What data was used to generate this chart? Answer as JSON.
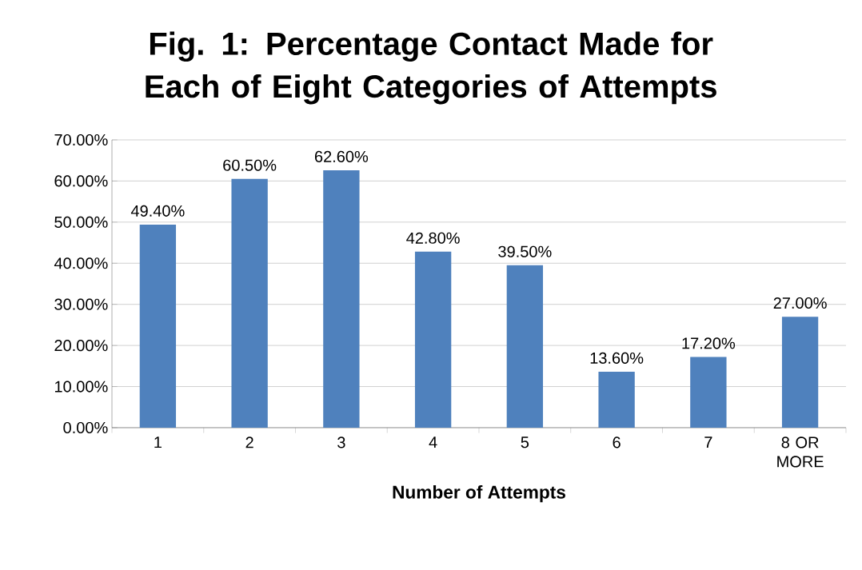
{
  "chart_data": {
    "type": "bar",
    "title": "Fig. 1: Percentage Contact Made for Each of Eight Categories of Attempts",
    "xlabel": "Number of Attempts",
    "categories": [
      "1",
      "2",
      "3",
      "4",
      "5",
      "6",
      "7",
      "8 OR MORE"
    ],
    "values": [
      49.4,
      60.5,
      62.6,
      42.8,
      39.5,
      13.6,
      17.2,
      27.0
    ],
    "value_labels": [
      "49.40%",
      "60.50%",
      "62.60%",
      "42.80%",
      "39.50%",
      "13.60%",
      "17.20%",
      "27.00%"
    ],
    "color": "#4f81bd",
    "ylim": [
      0,
      70
    ],
    "yticks": [
      {
        "value": 0,
        "label": "0.00%"
      },
      {
        "value": 10,
        "label": "10.00%"
      },
      {
        "value": 20,
        "label": "20.00%"
      },
      {
        "value": 30,
        "label": "30.00%"
      },
      {
        "value": 40,
        "label": "40.00%"
      },
      {
        "value": 50,
        "label": "50.00%"
      },
      {
        "value": 60,
        "label": "60.00%"
      },
      {
        "value": 70,
        "label": "70.00%"
      }
    ],
    "grid": "y"
  }
}
